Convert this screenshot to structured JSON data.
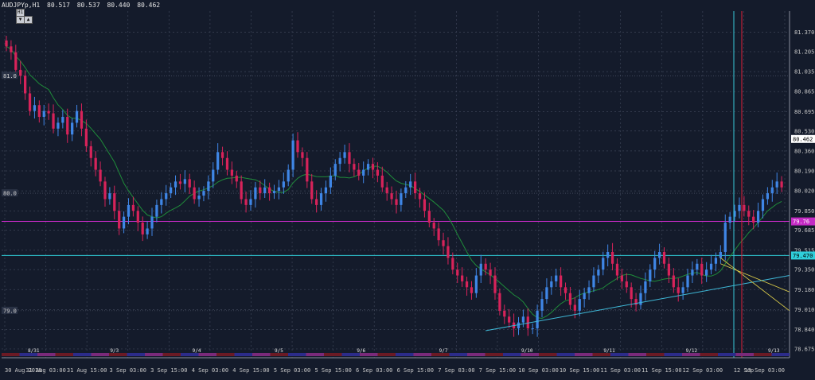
{
  "window": {
    "symbol_label": "AUDJPYp,H1",
    "quote": [
      "80.517",
      "80.537",
      "80.440",
      "80.462"
    ],
    "nav_up": "▲",
    "nav_down": "▼",
    "scale_badge": "H1"
  },
  "colors": {
    "background": "#141b2b",
    "grid": "#3c4457",
    "bull_candle": "#3f86e6",
    "bear_candle": "#d7235a",
    "moving_average": "#1f8c3a",
    "magenta_line": "#c42ac4",
    "cyan_line": "#2fcfdb",
    "trend_line": "#3fb9d8",
    "channel_line": "#e3d34a",
    "vertical_red": "#e0203a",
    "vertical_cyan": "#38c9d8"
  },
  "chart_data": {
    "type": "candlestick",
    "title": "AUDJPYp,H1",
    "ylim": [
      78.6,
      81.55
    ],
    "y_ticks": [
      "81.370",
      "81.205",
      "81.035",
      "80.865",
      "80.695",
      "80.530",
      "80.360",
      "80.190",
      "80.020",
      "79.850",
      "79.685",
      "79.515",
      "79.350",
      "79.180",
      "79.010",
      "78.840",
      "78.675"
    ],
    "price_tags": [
      {
        "value": "80.462",
        "style": "current"
      },
      {
        "value": "79.470",
        "style": "cyan"
      },
      {
        "value": "79.76",
        "style": "magenta"
      }
    ],
    "level_labels": [
      "81.0",
      "80.0",
      "79.0"
    ],
    "level_values": [
      81.0,
      80.0,
      79.0
    ],
    "x_labels": [
      "30 Aug 2018",
      "31 Aug 03:00",
      "31 Aug 15:00",
      "3 Sep 03:00",
      "3 Sep 15:00",
      "4 Sep 03:00",
      "4 Sep 15:00",
      "5 Sep 03:00",
      "5 Sep 15:00",
      "6 Sep 03:00",
      "6 Sep 15:00",
      "7 Sep 03:00",
      "7 Sep 15:00",
      "10 Sep 03:00",
      "10 Sep 15:00",
      "11 Sep 03:00",
      "11 Sep 15:00",
      "12 Sep 03:00",
      "12 Sep",
      "13 Sep 03:00"
    ],
    "day_labels": [
      "8/31",
      "9/3",
      "9/4",
      "9/5",
      "9/6",
      "9/7",
      "9/10",
      "9/11",
      "9/12",
      "9/13"
    ],
    "horizontal_lines": {
      "magenta": 79.76,
      "cyan": 79.47
    },
    "trend_line": {
      "start": 78.83,
      "end": 79.3
    },
    "channel_lines": [
      {
        "start": 79.45,
        "end": 79.0
      },
      {
        "start": 79.4,
        "end": 79.16
      }
    ],
    "close": [
      81.25,
      81.2,
      81.05,
      81.0,
      80.85,
      80.7,
      80.75,
      80.65,
      80.7,
      80.68,
      80.55,
      80.6,
      80.65,
      80.5,
      80.6,
      80.7,
      80.55,
      80.4,
      80.3,
      80.2,
      80.1,
      79.95,
      80.0,
      79.85,
      79.7,
      79.8,
      79.9,
      79.85,
      79.75,
      79.65,
      79.7,
      79.8,
      79.9,
      79.95,
      80.0,
      80.05,
      80.1,
      80.08,
      80.12,
      80.05,
      79.95,
      79.98,
      80.02,
      80.1,
      80.2,
      80.35,
      80.3,
      80.2,
      80.15,
      80.1,
      79.95,
      79.9,
      79.95,
      80.05,
      80.0,
      80.05,
      80.0,
      80.02,
      80.05,
      80.1,
      80.2,
      80.45,
      80.35,
      80.3,
      80.1,
      79.95,
      79.9,
      80.0,
      80.05,
      80.15,
      80.25,
      80.3,
      80.35,
      80.25,
      80.2,
      80.15,
      80.2,
      80.25,
      80.2,
      80.15,
      80.05,
      80.0,
      79.95,
      79.9,
      80.0,
      80.05,
      80.1,
      80.0,
      79.95,
      79.85,
      79.75,
      79.7,
      79.6,
      79.55,
      79.45,
      79.35,
      79.3,
      79.25,
      79.2,
      79.15,
      79.3,
      79.4,
      79.35,
      79.3,
      79.15,
      79.0,
      78.95,
      78.9,
      78.85,
      78.9,
      78.95,
      78.85,
      78.85,
      79.0,
      79.1,
      79.2,
      79.25,
      79.3,
      79.2,
      79.15,
      79.05,
      79.0,
      79.1,
      79.15,
      79.2,
      79.3,
      79.35,
      79.45,
      79.5,
      79.4,
      79.3,
      79.25,
      79.2,
      79.1,
      79.05,
      79.15,
      79.25,
      79.35,
      79.45,
      79.5,
      79.4,
      79.3,
      79.2,
      79.15,
      79.2,
      79.3,
      79.35,
      79.4,
      79.3,
      79.35,
      79.4,
      79.45,
      79.5,
      79.75,
      79.8,
      79.85,
      79.9,
      79.85,
      79.8,
      79.75,
      79.85,
      79.95,
      80.0,
      80.05,
      80.1,
      80.05
    ]
  }
}
